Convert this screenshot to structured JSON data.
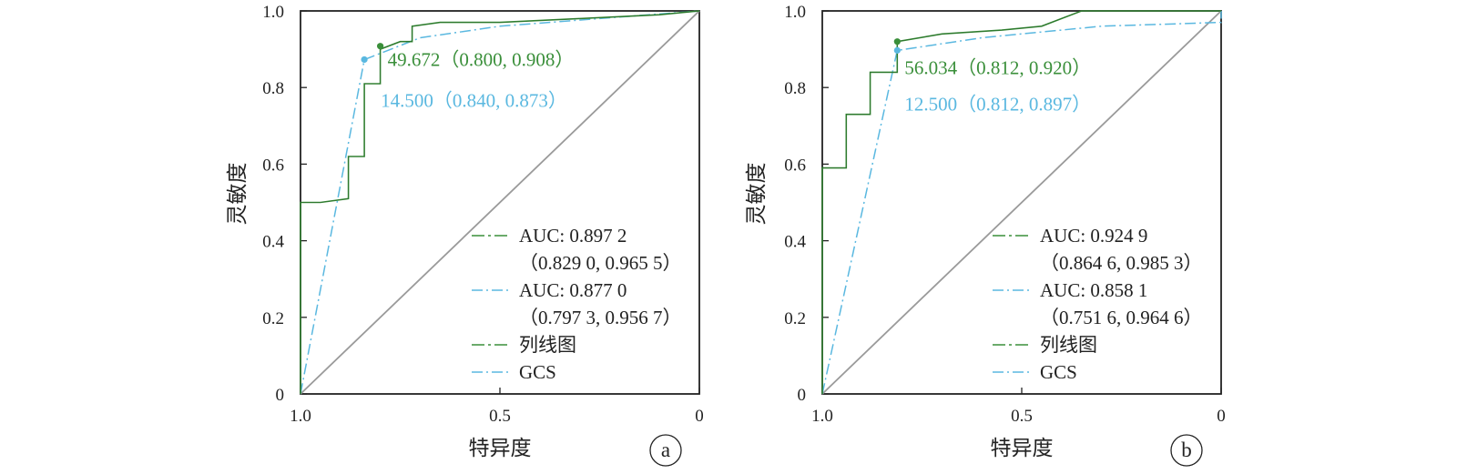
{
  "colors": {
    "nomogram": "#3a8f3a",
    "gcs": "#5ab8e0",
    "diagonal": "#9a9a9a",
    "axis": "#222222"
  },
  "chart_data": [
    {
      "type": "line",
      "panel_label": "a",
      "xlabel": "特异度",
      "ylabel": "灵敏度",
      "xlim": [
        1.0,
        0
      ],
      "ylim": [
        0,
        1.0
      ],
      "x_ticks": [
        "1.0",
        "0.5",
        "0"
      ],
      "x_tick_values": [
        1.0,
        0.5,
        0
      ],
      "y_ticks": [
        "0",
        "0.2",
        "0.4",
        "0.6",
        "0.8",
        "1.0"
      ],
      "y_tick_values": [
        0,
        0.2,
        0.4,
        0.6,
        0.8,
        1.0
      ],
      "grid": false,
      "legend_position": "bottom-right",
      "series": [
        {
          "name": "列线图",
          "color_key": "nomogram",
          "auc_label": "AUC: 0.897 2",
          "ci_label": "（0.829 0, 0.965 5）",
          "points": [
            [
              1.0,
              0
            ],
            [
              1.0,
              0.5
            ],
            [
              0.95,
              0.5
            ],
            [
              0.88,
              0.51
            ],
            [
              0.88,
              0.62
            ],
            [
              0.84,
              0.62
            ],
            [
              0.84,
              0.81
            ],
            [
              0.8,
              0.81
            ],
            [
              0.8,
              0.9
            ],
            [
              0.75,
              0.92
            ],
            [
              0.72,
              0.92
            ],
            [
              0.72,
              0.96
            ],
            [
              0.65,
              0.97
            ],
            [
              0.5,
              0.97
            ],
            [
              0.3,
              0.98
            ],
            [
              0.1,
              0.99
            ],
            [
              0,
              1.0
            ]
          ],
          "cutoff": {
            "label": "49.672（0.800, 0.908）",
            "x": 0.8,
            "y": 0.908
          }
        },
        {
          "name": "GCS",
          "color_key": "gcs",
          "auc_label": "AUC: 0.877 0",
          "ci_label": "（0.797 3, 0.956 7）",
          "points": [
            [
              1.0,
              0
            ],
            [
              0.84,
              0.873
            ],
            [
              0.7,
              0.93
            ],
            [
              0.5,
              0.96
            ],
            [
              0.25,
              0.98
            ],
            [
              0,
              1.0
            ]
          ],
          "cutoff": {
            "label": "14.500（0.840, 0.873）",
            "x": 0.84,
            "y": 0.873
          }
        }
      ]
    },
    {
      "type": "line",
      "panel_label": "b",
      "xlabel": "特异度",
      "ylabel": "灵敏度",
      "xlim": [
        1.0,
        0
      ],
      "ylim": [
        0,
        1.0
      ],
      "x_ticks": [
        "1.0",
        "0.5",
        "0"
      ],
      "x_tick_values": [
        1.0,
        0.5,
        0
      ],
      "y_ticks": [
        "0",
        "0.2",
        "0.4",
        "0.6",
        "0.8",
        "1.0"
      ],
      "y_tick_values": [
        0,
        0.2,
        0.4,
        0.6,
        0.8,
        1.0
      ],
      "grid": false,
      "legend_position": "bottom-right",
      "series": [
        {
          "name": "列线图",
          "color_key": "nomogram",
          "auc_label": "AUC: 0.924 9",
          "ci_label": "（0.864 6, 0.985 3）",
          "points": [
            [
              1.0,
              0
            ],
            [
              1.0,
              0.59
            ],
            [
              0.94,
              0.59
            ],
            [
              0.94,
              0.73
            ],
            [
              0.88,
              0.73
            ],
            [
              0.88,
              0.84
            ],
            [
              0.812,
              0.84
            ],
            [
              0.812,
              0.92
            ],
            [
              0.7,
              0.94
            ],
            [
              0.55,
              0.95
            ],
            [
              0.45,
              0.96
            ],
            [
              0.4,
              0.98
            ],
            [
              0.35,
              1.0
            ],
            [
              0,
              1.0
            ]
          ],
          "cutoff": {
            "label": "56.034（0.812, 0.920）",
            "x": 0.812,
            "y": 0.92
          }
        },
        {
          "name": "GCS",
          "color_key": "gcs",
          "auc_label": "AUC: 0.858 1",
          "ci_label": "（0.751 6, 0.964 6）",
          "points": [
            [
              1.0,
              0
            ],
            [
              0.812,
              0.897
            ],
            [
              0.6,
              0.93
            ],
            [
              0.3,
              0.96
            ],
            [
              0,
              0.97
            ],
            [
              0,
              1.0
            ]
          ],
          "cutoff": {
            "label": "12.500（0.812, 0.897）",
            "x": 0.812,
            "y": 0.897
          }
        }
      ]
    }
  ]
}
